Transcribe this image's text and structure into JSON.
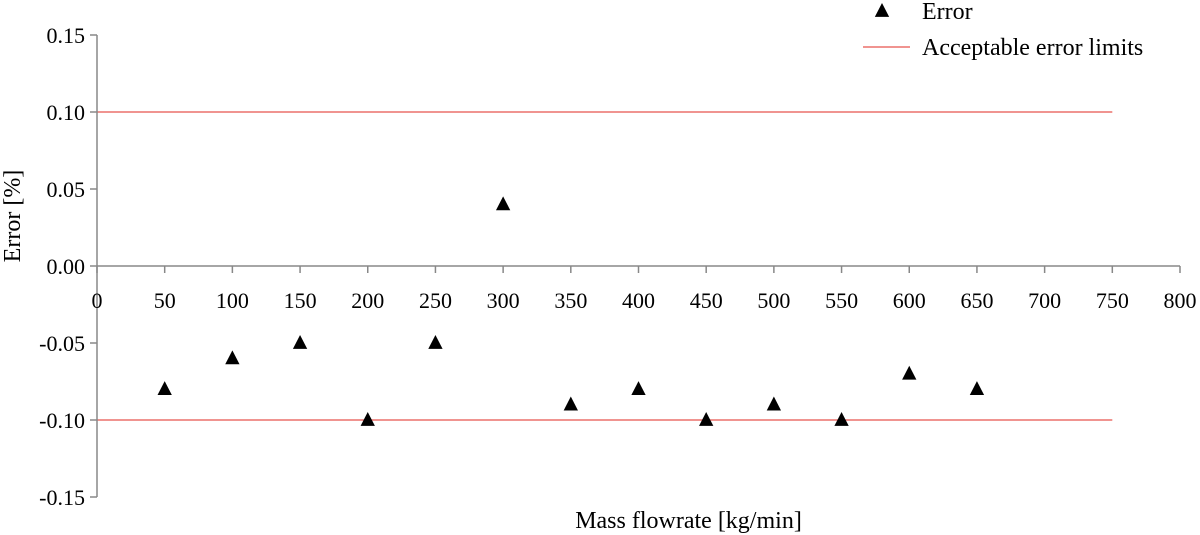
{
  "chart_data": {
    "type": "scatter",
    "title": "",
    "xlabel": "Mass flowrate [kg/min]",
    "ylabel": "Error [%]",
    "xlim": [
      0,
      800
    ],
    "ylim": [
      -0.15,
      0.15
    ],
    "x_ticks": [
      0,
      50,
      100,
      150,
      200,
      250,
      300,
      350,
      400,
      450,
      500,
      550,
      600,
      650,
      700,
      750,
      800
    ],
    "y_ticks": [
      0.15,
      0.1,
      0.05,
      0.0,
      -0.05,
      -0.1,
      -0.15
    ],
    "x_tick_labels": [
      "0",
      "50",
      "100",
      "150",
      "200",
      "250",
      "300",
      "350",
      "400",
      "450",
      "500",
      "550",
      "600",
      "650",
      "700",
      "750",
      "800"
    ],
    "y_tick_labels": [
      "0.15",
      "0.10",
      "0.05",
      "0.00",
      "-0.05",
      "-0.10",
      "-0.15"
    ],
    "series": [
      {
        "name": "Error",
        "marker": "triangle",
        "color": "#000000",
        "x": [
          50,
          100,
          150,
          200,
          250,
          300,
          350,
          400,
          450,
          500,
          550,
          600,
          650
        ],
        "y": [
          -0.08,
          -0.06,
          -0.05,
          -0.1,
          -0.05,
          0.04,
          -0.09,
          -0.08,
          -0.1,
          -0.09,
          -0.1,
          -0.07,
          -0.08
        ]
      },
      {
        "name": "Acceptable error limits",
        "type": "hline",
        "color": "#e8554e",
        "values": [
          0.1,
          -0.1
        ],
        "x_range": [
          0,
          750
        ]
      }
    ],
    "legend": {
      "position": "top-right",
      "entries": [
        "Error",
        "Acceptable error limits"
      ]
    }
  }
}
